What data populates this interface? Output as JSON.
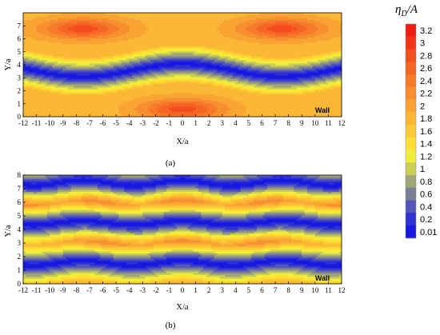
{
  "chart_data": [
    {
      "type": "heatmap",
      "panel_label": "(a)",
      "xlabel": "X/a",
      "ylabel": "Y/a",
      "xlim": [
        -12,
        12
      ],
      "ylim": [
        0,
        8
      ],
      "x_ticks": [
        "-12",
        "-11",
        "-10",
        "-9",
        "-8",
        "-7",
        "-6",
        "-5",
        "-4",
        "-3",
        "-2",
        "-1",
        "0",
        "1",
        "2",
        "3",
        "4",
        "5",
        "6",
        "7",
        "8",
        "9",
        "10",
        "11",
        "12"
      ],
      "y_ticks": [
        "0",
        "1",
        "2",
        "3",
        "4",
        "5",
        "6",
        "7"
      ],
      "annotation": "Wall",
      "field": {
        "bands": [
          {
            "center_y": 3.6,
            "amplitude": 0.5,
            "period_x": 15.0,
            "min_value": 0.01
          }
        ],
        "peak_value": 2.9,
        "peak_centers": [
          [
            -7.5,
            6.8
          ],
          [
            7.5,
            6.8
          ],
          [
            0,
            0.6
          ]
        ]
      }
    },
    {
      "type": "heatmap",
      "panel_label": "(b)",
      "xlabel": "X/a",
      "ylabel": "Y/a",
      "xlim": [
        -12,
        12
      ],
      "ylim": [
        0,
        8
      ],
      "x_ticks": [
        "-12",
        "-11",
        "-10",
        "-9",
        "-8",
        "-7",
        "-6",
        "-5",
        "-4",
        "-3",
        "-2",
        "-1",
        "0",
        "1",
        "2",
        "3",
        "4",
        "5",
        "6",
        "7",
        "8",
        "9",
        "10",
        "11",
        "12"
      ],
      "y_ticks": [
        "0",
        "1",
        "2",
        "3",
        "4",
        "5",
        "6",
        "7",
        "8"
      ],
      "annotation": "Wall",
      "field": {
        "bands": [
          {
            "center_y": 1.55,
            "amplitude": 0.18,
            "period_x": 7.5,
            "min_value": 0.01
          },
          {
            "center_y": 4.5,
            "amplitude": 0.15,
            "period_x": 7.5,
            "min_value": 0.01
          },
          {
            "center_y": 7.45,
            "amplitude": 0.2,
            "period_x": 7.5,
            "min_value": 0.01
          }
        ],
        "peak_value": 2.4,
        "peak_centers": [
          [
            -6,
            3.1
          ],
          [
            0,
            3.1
          ],
          [
            6,
            3.1
          ],
          [
            -6,
            6.1
          ],
          [
            0,
            6.1
          ],
          [
            6,
            6.1
          ],
          [
            -12,
            6.1
          ],
          [
            12,
            6.1
          ]
        ]
      }
    }
  ],
  "colorbar": {
    "title": "η_D/A",
    "title_main": "η",
    "title_sub": "D",
    "title_rest": "/A",
    "levels": [
      {
        "label": "3.2",
        "value": 3.2,
        "color": "#f21a12"
      },
      {
        "label": "3",
        "value": 3.0,
        "color": "#f5331a"
      },
      {
        "label": "2.8",
        "value": 2.8,
        "color": "#f54d1f"
      },
      {
        "label": "2.6",
        "value": 2.6,
        "color": "#f56524"
      },
      {
        "label": "2.4",
        "value": 2.4,
        "color": "#f77a2b"
      },
      {
        "label": "2.2",
        "value": 2.2,
        "color": "#f78f30"
      },
      {
        "label": "2",
        "value": 2.0,
        "color": "#f9a533"
      },
      {
        "label": "1.8",
        "value": 1.8,
        "color": "#fab836"
      },
      {
        "label": "1.6",
        "value": 1.6,
        "color": "#fccb33"
      },
      {
        "label": "1.4",
        "value": 1.4,
        "color": "#fde033"
      },
      {
        "label": "1.2",
        "value": 1.2,
        "color": "#f2ee3d"
      },
      {
        "label": "1",
        "value": 1.0,
        "color": "#c9cf55"
      },
      {
        "label": "0.8",
        "value": 0.8,
        "color": "#a0a676"
      },
      {
        "label": "0.6",
        "value": 0.6,
        "color": "#7a7f96"
      },
      {
        "label": "0.4",
        "value": 0.4,
        "color": "#5256b9"
      },
      {
        "label": "0.2",
        "value": 0.2,
        "color": "#2f33d3"
      },
      {
        "label": "0.01",
        "value": 0.01,
        "color": "#1818e0"
      }
    ]
  }
}
